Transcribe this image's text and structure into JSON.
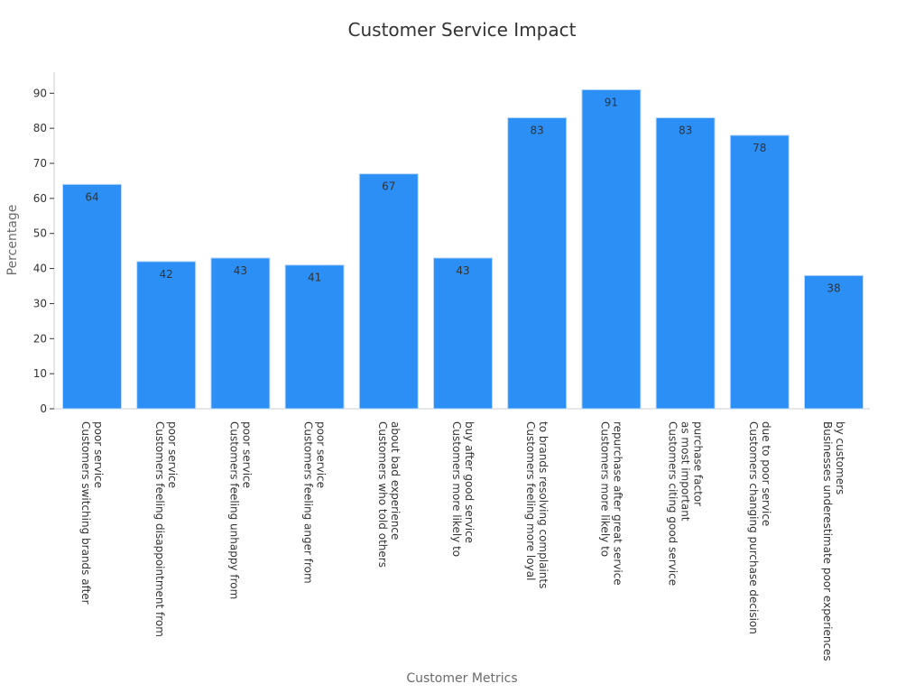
{
  "chart_data": {
    "type": "bar",
    "title": "Customer Service Impact",
    "xlabel": "Customer Metrics",
    "ylabel": "Percentage",
    "ylim": [
      0,
      96
    ],
    "yticks": [
      0,
      10,
      20,
      30,
      40,
      50,
      60,
      70,
      80,
      90
    ],
    "categories": [
      "Customers switching brands after poor service",
      "Customers feeling disappointment from poor service",
      "Customers feeling unhappy from poor service",
      "Customers feeling anger from poor service",
      "Customers who told others about bad experience",
      "Customers more likely to buy after good service",
      "Customers feeling more loyal to brands resolving complaints",
      "Customers more likely to repurchase after great service",
      "Customers citing good service as most important purchase factor",
      "Customers changing purchase decision due to poor service",
      "Businesses underestimate poor experiences by customers"
    ],
    "category_lines": [
      [
        "Customers switching brands after",
        "poor service"
      ],
      [
        "Customers feeling disappointment from",
        "poor service"
      ],
      [
        "Customers feeling unhappy from",
        "poor service"
      ],
      [
        "Customers feeling anger from",
        "poor service"
      ],
      [
        "Customers who told others",
        "about bad experience"
      ],
      [
        "Customers more likely to",
        "buy after good service"
      ],
      [
        "Customers feeling more loyal",
        "to brands resolving complaints"
      ],
      [
        "Customers more likely to",
        "repurchase after great service"
      ],
      [
        "Customers citing good service",
        "as most important",
        "purchase factor"
      ],
      [
        "Customers changing purchase decision",
        "due to poor service"
      ],
      [
        "Businesses underestimate poor experiences",
        "by customers"
      ]
    ],
    "values": [
      64,
      42,
      43,
      41,
      67,
      43,
      83,
      91,
      83,
      78,
      38
    ],
    "grid": false,
    "legend": "none",
    "bar_color": "#2b8ff5",
    "bar_edge_color": "#b9d8f7"
  }
}
